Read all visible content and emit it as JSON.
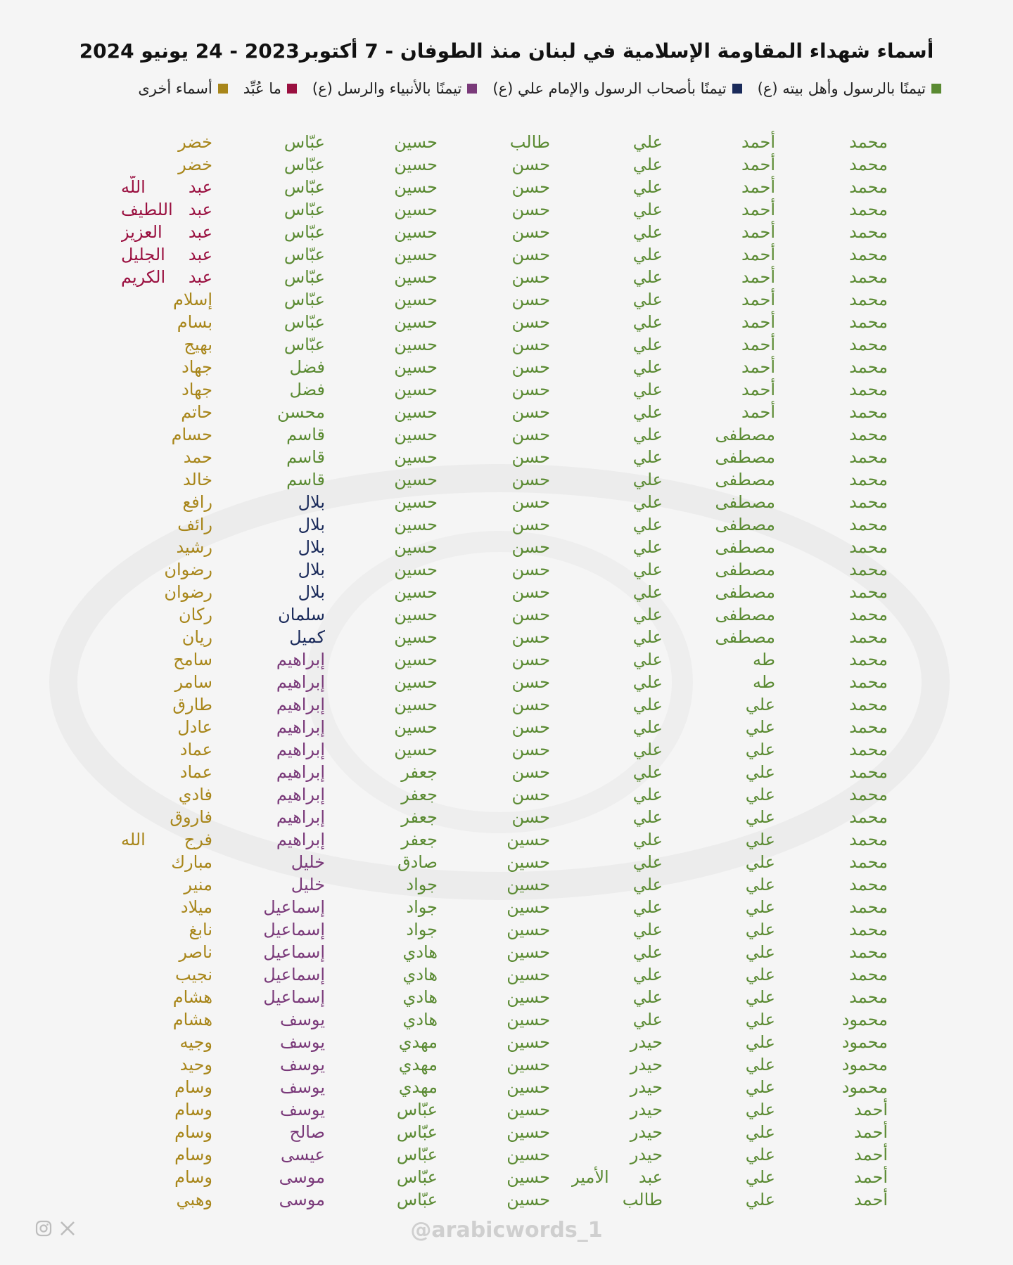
{
  "title": "أسماء شهداء المقاومة الإسلامية في لبنان منذ الطوفان - 7 أكتوبر2023 - 24 يونيو 2024",
  "colors": {
    "green": "#5a8a32",
    "navy": "#1a2a5a",
    "purple": "#7a3a7a",
    "crimson": "#9a1040",
    "gold": "#a8861a"
  },
  "legend": [
    {
      "label": "تيمنًا بالرسول وأهل بيته (ع)",
      "color": "#5a8a32"
    },
    {
      "label": "تيمنًا بأصحاب الرسول والإمام علي (ع)",
      "color": "#1a2a5a"
    },
    {
      "label": "تيمنًا بالأنبياء والرسل (ع)",
      "color": "#7a3a7a"
    },
    {
      "label": "ما عُبِّد",
      "color": "#9a1040"
    },
    {
      "label": "أسماء أخرى",
      "color": "#a8861a"
    }
  ],
  "footer": {
    "handle": "@arabicwords_1",
    "icons": [
      "instagram-icon",
      "x-icon"
    ]
  },
  "rows": [
    [
      [
        "محمد",
        "g"
      ],
      [
        "أحمد",
        "g"
      ],
      [
        "علي",
        "g"
      ],
      [
        "طالب",
        "g"
      ],
      [
        "حسين",
        "g"
      ],
      [
        "عبّاس",
        "g"
      ],
      [
        "خضر",
        "y"
      ]
    ],
    [
      [
        "محمد",
        "g"
      ],
      [
        "أحمد",
        "g"
      ],
      [
        "علي",
        "g"
      ],
      [
        "حسن",
        "g"
      ],
      [
        "حسين",
        "g"
      ],
      [
        "عبّاس",
        "g"
      ],
      [
        "خضر",
        "y"
      ]
    ],
    [
      [
        "محمد",
        "g"
      ],
      [
        "أحمد",
        "g"
      ],
      [
        "علي",
        "g"
      ],
      [
        "حسن",
        "g"
      ],
      [
        "حسين",
        "g"
      ],
      [
        "عبّاس",
        "g"
      ],
      [
        "عبد اللّه",
        "r"
      ]
    ],
    [
      [
        "محمد",
        "g"
      ],
      [
        "أحمد",
        "g"
      ],
      [
        "علي",
        "g"
      ],
      [
        "حسن",
        "g"
      ],
      [
        "حسين",
        "g"
      ],
      [
        "عبّاس",
        "g"
      ],
      [
        "عبد اللطيف",
        "r"
      ]
    ],
    [
      [
        "محمد",
        "g"
      ],
      [
        "أحمد",
        "g"
      ],
      [
        "علي",
        "g"
      ],
      [
        "حسن",
        "g"
      ],
      [
        "حسين",
        "g"
      ],
      [
        "عبّاس",
        "g"
      ],
      [
        "عبد العزيز",
        "r"
      ]
    ],
    [
      [
        "محمد",
        "g"
      ],
      [
        "أحمد",
        "g"
      ],
      [
        "علي",
        "g"
      ],
      [
        "حسن",
        "g"
      ],
      [
        "حسين",
        "g"
      ],
      [
        "عبّاس",
        "g"
      ],
      [
        "عبد الجليل",
        "r"
      ]
    ],
    [
      [
        "محمد",
        "g"
      ],
      [
        "أحمد",
        "g"
      ],
      [
        "علي",
        "g"
      ],
      [
        "حسن",
        "g"
      ],
      [
        "حسين",
        "g"
      ],
      [
        "عبّاس",
        "g"
      ],
      [
        "عبد الكريم",
        "r"
      ]
    ],
    [
      [
        "محمد",
        "g"
      ],
      [
        "أحمد",
        "g"
      ],
      [
        "علي",
        "g"
      ],
      [
        "حسن",
        "g"
      ],
      [
        "حسين",
        "g"
      ],
      [
        "عبّاس",
        "g"
      ],
      [
        "إسلام",
        "y"
      ]
    ],
    [
      [
        "محمد",
        "g"
      ],
      [
        "أحمد",
        "g"
      ],
      [
        "علي",
        "g"
      ],
      [
        "حسن",
        "g"
      ],
      [
        "حسين",
        "g"
      ],
      [
        "عبّاس",
        "g"
      ],
      [
        "بسام",
        "y"
      ]
    ],
    [
      [
        "محمد",
        "g"
      ],
      [
        "أحمد",
        "g"
      ],
      [
        "علي",
        "g"
      ],
      [
        "حسن",
        "g"
      ],
      [
        "حسين",
        "g"
      ],
      [
        "عبّاس",
        "g"
      ],
      [
        "بهيج",
        "y"
      ]
    ],
    [
      [
        "محمد",
        "g"
      ],
      [
        "أحمد",
        "g"
      ],
      [
        "علي",
        "g"
      ],
      [
        "حسن",
        "g"
      ],
      [
        "حسين",
        "g"
      ],
      [
        "فضل",
        "g"
      ],
      [
        "جهاد",
        "y"
      ]
    ],
    [
      [
        "محمد",
        "g"
      ],
      [
        "أحمد",
        "g"
      ],
      [
        "علي",
        "g"
      ],
      [
        "حسن",
        "g"
      ],
      [
        "حسين",
        "g"
      ],
      [
        "فضل",
        "g"
      ],
      [
        "جهاد",
        "y"
      ]
    ],
    [
      [
        "محمد",
        "g"
      ],
      [
        "أحمد",
        "g"
      ],
      [
        "علي",
        "g"
      ],
      [
        "حسن",
        "g"
      ],
      [
        "حسين",
        "g"
      ],
      [
        "محسن",
        "g"
      ],
      [
        "حاتم",
        "y"
      ]
    ],
    [
      [
        "محمد",
        "g"
      ],
      [
        "مصطفى",
        "g"
      ],
      [
        "علي",
        "g"
      ],
      [
        "حسن",
        "g"
      ],
      [
        "حسين",
        "g"
      ],
      [
        "قاسم",
        "g"
      ],
      [
        "حسام",
        "y"
      ]
    ],
    [
      [
        "محمد",
        "g"
      ],
      [
        "مصطفى",
        "g"
      ],
      [
        "علي",
        "g"
      ],
      [
        "حسن",
        "g"
      ],
      [
        "حسين",
        "g"
      ],
      [
        "قاسم",
        "g"
      ],
      [
        "حمد",
        "y"
      ]
    ],
    [
      [
        "محمد",
        "g"
      ],
      [
        "مصطفى",
        "g"
      ],
      [
        "علي",
        "g"
      ],
      [
        "حسن",
        "g"
      ],
      [
        "حسين",
        "g"
      ],
      [
        "قاسم",
        "g"
      ],
      [
        "خالد",
        "y"
      ]
    ],
    [
      [
        "محمد",
        "g"
      ],
      [
        "مصطفى",
        "g"
      ],
      [
        "علي",
        "g"
      ],
      [
        "حسن",
        "g"
      ],
      [
        "حسين",
        "g"
      ],
      [
        "بلال",
        "n"
      ],
      [
        "رافع",
        "y"
      ]
    ],
    [
      [
        "محمد",
        "g"
      ],
      [
        "مصطفى",
        "g"
      ],
      [
        "علي",
        "g"
      ],
      [
        "حسن",
        "g"
      ],
      [
        "حسين",
        "g"
      ],
      [
        "بلال",
        "n"
      ],
      [
        "رائف",
        "y"
      ]
    ],
    [
      [
        "محمد",
        "g"
      ],
      [
        "مصطفى",
        "g"
      ],
      [
        "علي",
        "g"
      ],
      [
        "حسن",
        "g"
      ],
      [
        "حسين",
        "g"
      ],
      [
        "بلال",
        "n"
      ],
      [
        "رشيد",
        "y"
      ]
    ],
    [
      [
        "محمد",
        "g"
      ],
      [
        "مصطفى",
        "g"
      ],
      [
        "علي",
        "g"
      ],
      [
        "حسن",
        "g"
      ],
      [
        "حسين",
        "g"
      ],
      [
        "بلال",
        "n"
      ],
      [
        "رضوان",
        "y"
      ]
    ],
    [
      [
        "محمد",
        "g"
      ],
      [
        "مصطفى",
        "g"
      ],
      [
        "علي",
        "g"
      ],
      [
        "حسن",
        "g"
      ],
      [
        "حسين",
        "g"
      ],
      [
        "بلال",
        "n"
      ],
      [
        "رضوان",
        "y"
      ]
    ],
    [
      [
        "محمد",
        "g"
      ],
      [
        "مصطفى",
        "g"
      ],
      [
        "علي",
        "g"
      ],
      [
        "حسن",
        "g"
      ],
      [
        "حسين",
        "g"
      ],
      [
        "سلمان",
        "n"
      ],
      [
        "ركان",
        "y"
      ]
    ],
    [
      [
        "محمد",
        "g"
      ],
      [
        "مصطفى",
        "g"
      ],
      [
        "علي",
        "g"
      ],
      [
        "حسن",
        "g"
      ],
      [
        "حسين",
        "g"
      ],
      [
        "كميل",
        "n"
      ],
      [
        "ريان",
        "y"
      ]
    ],
    [
      [
        "محمد",
        "g"
      ],
      [
        "طه",
        "g"
      ],
      [
        "علي",
        "g"
      ],
      [
        "حسن",
        "g"
      ],
      [
        "حسين",
        "g"
      ],
      [
        "إبراهيم",
        "p"
      ],
      [
        "سامح",
        "y"
      ]
    ],
    [
      [
        "محمد",
        "g"
      ],
      [
        "طه",
        "g"
      ],
      [
        "علي",
        "g"
      ],
      [
        "حسن",
        "g"
      ],
      [
        "حسين",
        "g"
      ],
      [
        "إبراهيم",
        "p"
      ],
      [
        "سامر",
        "y"
      ]
    ],
    [
      [
        "محمد",
        "g"
      ],
      [
        "علي",
        "g"
      ],
      [
        "علي",
        "g"
      ],
      [
        "حسن",
        "g"
      ],
      [
        "حسين",
        "g"
      ],
      [
        "إبراهيم",
        "p"
      ],
      [
        "طارق",
        "y"
      ]
    ],
    [
      [
        "محمد",
        "g"
      ],
      [
        "علي",
        "g"
      ],
      [
        "علي",
        "g"
      ],
      [
        "حسن",
        "g"
      ],
      [
        "حسين",
        "g"
      ],
      [
        "إبراهيم",
        "p"
      ],
      [
        "عادل",
        "y"
      ]
    ],
    [
      [
        "محمد",
        "g"
      ],
      [
        "علي",
        "g"
      ],
      [
        "علي",
        "g"
      ],
      [
        "حسن",
        "g"
      ],
      [
        "حسين",
        "g"
      ],
      [
        "إبراهيم",
        "p"
      ],
      [
        "عماد",
        "y"
      ]
    ],
    [
      [
        "محمد",
        "g"
      ],
      [
        "علي",
        "g"
      ],
      [
        "علي",
        "g"
      ],
      [
        "حسن",
        "g"
      ],
      [
        "جعفر",
        "g"
      ],
      [
        "إبراهيم",
        "p"
      ],
      [
        "عماد",
        "y"
      ]
    ],
    [
      [
        "محمد",
        "g"
      ],
      [
        "علي",
        "g"
      ],
      [
        "علي",
        "g"
      ],
      [
        "حسن",
        "g"
      ],
      [
        "جعفر",
        "g"
      ],
      [
        "إبراهيم",
        "p"
      ],
      [
        "فادي",
        "y"
      ]
    ],
    [
      [
        "محمد",
        "g"
      ],
      [
        "علي",
        "g"
      ],
      [
        "علي",
        "g"
      ],
      [
        "حسن",
        "g"
      ],
      [
        "جعفر",
        "g"
      ],
      [
        "إبراهيم",
        "p"
      ],
      [
        "فاروق",
        "y"
      ]
    ],
    [
      [
        "محمد",
        "g"
      ],
      [
        "علي",
        "g"
      ],
      [
        "علي",
        "g"
      ],
      [
        "حسين",
        "g"
      ],
      [
        "جعفر",
        "g"
      ],
      [
        "إبراهيم",
        "p"
      ],
      [
        "فرج الله",
        "y"
      ]
    ],
    [
      [
        "محمد",
        "g"
      ],
      [
        "علي",
        "g"
      ],
      [
        "علي",
        "g"
      ],
      [
        "حسين",
        "g"
      ],
      [
        "صادق",
        "g"
      ],
      [
        "خليل",
        "p"
      ],
      [
        "مبارك",
        "y"
      ]
    ],
    [
      [
        "محمد",
        "g"
      ],
      [
        "علي",
        "g"
      ],
      [
        "علي",
        "g"
      ],
      [
        "حسين",
        "g"
      ],
      [
        "جواد",
        "g"
      ],
      [
        "خليل",
        "p"
      ],
      [
        "منير",
        "y"
      ]
    ],
    [
      [
        "محمد",
        "g"
      ],
      [
        "علي",
        "g"
      ],
      [
        "علي",
        "g"
      ],
      [
        "حسين",
        "g"
      ],
      [
        "جواد",
        "g"
      ],
      [
        "إسماعيل",
        "p"
      ],
      [
        "ميلاد",
        "y"
      ]
    ],
    [
      [
        "محمد",
        "g"
      ],
      [
        "علي",
        "g"
      ],
      [
        "علي",
        "g"
      ],
      [
        "حسين",
        "g"
      ],
      [
        "جواد",
        "g"
      ],
      [
        "إسماعيل",
        "p"
      ],
      [
        "نابغ",
        "y"
      ]
    ],
    [
      [
        "محمد",
        "g"
      ],
      [
        "علي",
        "g"
      ],
      [
        "علي",
        "g"
      ],
      [
        "حسين",
        "g"
      ],
      [
        "هادي",
        "g"
      ],
      [
        "إسماعيل",
        "p"
      ],
      [
        "ناصر",
        "y"
      ]
    ],
    [
      [
        "محمد",
        "g"
      ],
      [
        "علي",
        "g"
      ],
      [
        "علي",
        "g"
      ],
      [
        "حسين",
        "g"
      ],
      [
        "هادي",
        "g"
      ],
      [
        "إسماعيل",
        "p"
      ],
      [
        "نجيب",
        "y"
      ]
    ],
    [
      [
        "محمد",
        "g"
      ],
      [
        "علي",
        "g"
      ],
      [
        "علي",
        "g"
      ],
      [
        "حسين",
        "g"
      ],
      [
        "هادي",
        "g"
      ],
      [
        "إسماعيل",
        "p"
      ],
      [
        "هشام",
        "y"
      ]
    ],
    [
      [
        "محمود",
        "g"
      ],
      [
        "علي",
        "g"
      ],
      [
        "علي",
        "g"
      ],
      [
        "حسين",
        "g"
      ],
      [
        "هادي",
        "g"
      ],
      [
        "يوسف",
        "p"
      ],
      [
        "هشام",
        "y"
      ]
    ],
    [
      [
        "محمود",
        "g"
      ],
      [
        "علي",
        "g"
      ],
      [
        "حيدر",
        "g"
      ],
      [
        "حسين",
        "g"
      ],
      [
        "مهدي",
        "g"
      ],
      [
        "يوسف",
        "p"
      ],
      [
        "وجيه",
        "y"
      ]
    ],
    [
      [
        "محمود",
        "g"
      ],
      [
        "علي",
        "g"
      ],
      [
        "حيدر",
        "g"
      ],
      [
        "حسين",
        "g"
      ],
      [
        "مهدي",
        "g"
      ],
      [
        "يوسف",
        "p"
      ],
      [
        "وحيد",
        "y"
      ]
    ],
    [
      [
        "محمود",
        "g"
      ],
      [
        "علي",
        "g"
      ],
      [
        "حيدر",
        "g"
      ],
      [
        "حسين",
        "g"
      ],
      [
        "مهدي",
        "g"
      ],
      [
        "يوسف",
        "p"
      ],
      [
        "وسام",
        "y"
      ]
    ],
    [
      [
        "أحمد",
        "g"
      ],
      [
        "علي",
        "g"
      ],
      [
        "حيدر",
        "g"
      ],
      [
        "حسين",
        "g"
      ],
      [
        "عبّاس",
        "g"
      ],
      [
        "يوسف",
        "p"
      ],
      [
        "وسام",
        "y"
      ]
    ],
    [
      [
        "أحمد",
        "g"
      ],
      [
        "علي",
        "g"
      ],
      [
        "حيدر",
        "g"
      ],
      [
        "حسين",
        "g"
      ],
      [
        "عبّاس",
        "g"
      ],
      [
        "صالح",
        "p"
      ],
      [
        "وسام",
        "y"
      ]
    ],
    [
      [
        "أحمد",
        "g"
      ],
      [
        "علي",
        "g"
      ],
      [
        "حيدر",
        "g"
      ],
      [
        "حسين",
        "g"
      ],
      [
        "عبّاس",
        "g"
      ],
      [
        "عيسى",
        "p"
      ],
      [
        "وسام",
        "y"
      ]
    ],
    [
      [
        "أحمد",
        "g"
      ],
      [
        "علي",
        "g"
      ],
      [
        "عبد الأمير",
        "g"
      ],
      [
        "حسين",
        "g"
      ],
      [
        "عبّاس",
        "g"
      ],
      [
        "موسى",
        "p"
      ],
      [
        "وسام",
        "y"
      ]
    ],
    [
      [
        "أحمد",
        "g"
      ],
      [
        "علي",
        "g"
      ],
      [
        "طالب",
        "g"
      ],
      [
        "حسين",
        "g"
      ],
      [
        "عبّاس",
        "g"
      ],
      [
        "موسى",
        "p"
      ],
      [
        "وهبي",
        "y"
      ]
    ]
  ]
}
